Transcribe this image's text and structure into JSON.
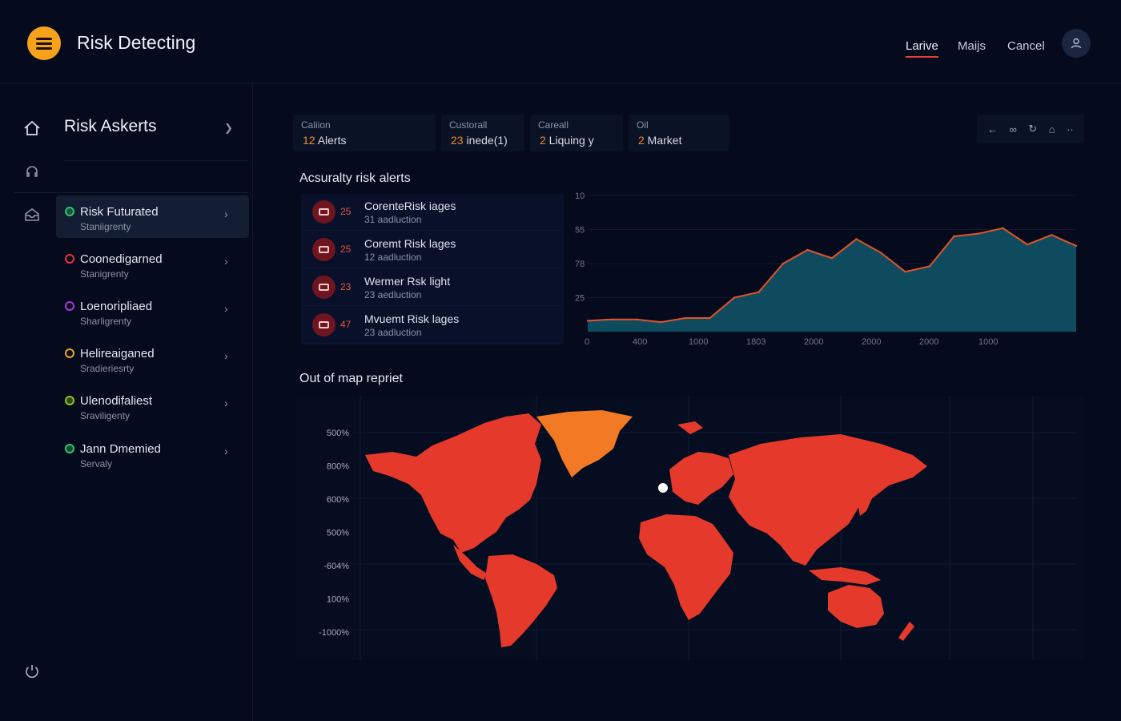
{
  "app": {
    "title": "Risk Detecting",
    "user_icon": "user-icon"
  },
  "top_nav": [
    {
      "label": "Larive",
      "active": true
    },
    {
      "label": "Maijs",
      "active": false
    },
    {
      "label": "Cancel",
      "active": false
    }
  ],
  "panel": {
    "title": "Risk Askerts",
    "items": [
      {
        "name": "Risk Futurated",
        "sub": "Staniigrenty",
        "color": "#2ec46a",
        "selected": true
      },
      {
        "name": "Coonedigarned",
        "sub": "Stanigrenty",
        "color": "#e5333b",
        "selected": false
      },
      {
        "name": "Loenoripliaed",
        "sub": "Sharligrenty",
        "color": "#a63ad8",
        "selected": false
      },
      {
        "name": "Helireaiganed",
        "sub": "Sradieriesrty",
        "color": "#f5a524",
        "selected": false
      },
      {
        "name": "Ulenodifaliest",
        "sub": "Sraviligenty",
        "color": "#8dc21f",
        "selected": false
      },
      {
        "name": "Jann Dmemied",
        "sub": "Servaly",
        "color": "#2ec46a",
        "selected": false
      }
    ]
  },
  "stats": [
    {
      "label": "Caliion",
      "num": "12",
      "text": " Alerts"
    },
    {
      "label": "Custorall",
      "num": "23",
      "text": " inede(1)"
    },
    {
      "label": "Careall",
      "num": "2",
      "text": " Liquing y"
    },
    {
      "label": "Oil",
      "num": "2",
      "text": " Market"
    }
  ],
  "alerts": {
    "title": "Acsuralty risk alerts",
    "items": [
      {
        "num": "25",
        "title": "CorenteRisk iages",
        "sub": "31 aadluction"
      },
      {
        "num": "25",
        "title": "Coremt Risk lages",
        "sub": "12 aadluction"
      },
      {
        "num": "23",
        "title": "Wermer Rsk light",
        "sub": "23 aedluction"
      },
      {
        "num": "47",
        "title": "Mvuemt Risk lages",
        "sub": "23 aadluction"
      }
    ]
  },
  "chart_data": {
    "type": "area",
    "y_tick_labels": [
      "10",
      "55",
      "78",
      "25",
      ""
    ],
    "x_tick_labels": [
      "0",
      "400",
      "1000",
      "1803",
      "2000",
      "2000",
      "2000",
      "1000"
    ],
    "values": [
      8,
      9,
      9,
      7,
      10,
      10,
      25,
      29,
      50,
      60,
      54,
      68,
      58,
      44,
      48,
      70,
      72,
      76,
      64,
      71,
      63
    ],
    "ylim": [
      0,
      100
    ],
    "fill_color": "#0e4b5f",
    "line_color": "#e2532a"
  },
  "map": {
    "title": "Out of map repriet",
    "y_labels": [
      "500%",
      "800%",
      "600%",
      "500%",
      "-604%",
      "100%",
      "-1000%"
    ],
    "fill_color": "#e53a2b",
    "highlight_color": "#f27a24"
  }
}
